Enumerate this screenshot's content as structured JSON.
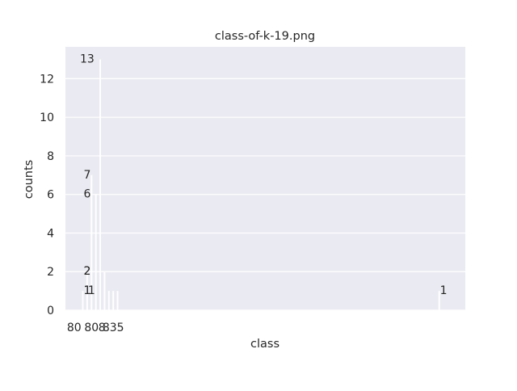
{
  "chart_data": {
    "type": "bar",
    "title": "class-of-k-19.png",
    "xlabel": "class",
    "ylabel": "counts",
    "ylim": [
      0,
      13.65
    ],
    "xlim": [
      803,
      849
    ],
    "grid": true,
    "bars": [
      {
        "x": 805,
        "value": 1
      },
      {
        "x": 805.5,
        "value": 2
      },
      {
        "x": 806,
        "value": 7
      },
      {
        "x": 806.5,
        "value": 6
      },
      {
        "x": 807,
        "value": 13
      },
      {
        "x": 807.5,
        "value": 2
      },
      {
        "x": 808,
        "value": 1
      },
      {
        "x": 808.5,
        "value": 1
      },
      {
        "x": 809,
        "value": 1
      },
      {
        "x": 846,
        "value": 1
      }
    ],
    "data_labels": [
      {
        "x": 805.5,
        "value": 13,
        "text": "13"
      },
      {
        "x": 805.5,
        "value": 7,
        "text": "7"
      },
      {
        "x": 805.5,
        "value": 6,
        "text": "6"
      },
      {
        "x": 805.5,
        "value": 2,
        "text": "2"
      },
      {
        "x": 805.5,
        "value": 2,
        "text": "2"
      },
      {
        "x": 805.5,
        "value": 1,
        "text": "1"
      },
      {
        "x": 805.5,
        "value": 1,
        "text": "1"
      },
      {
        "x": 806.0,
        "value": 1,
        "text": "1"
      },
      {
        "x": 846.5,
        "value": 1,
        "text": "1"
      }
    ],
    "y_ticks": [
      0,
      2,
      4,
      6,
      8,
      10,
      12
    ],
    "x_tick_labels": [
      {
        "x": 804.0,
        "text": "80"
      },
      {
        "x": 806.0,
        "text": "80"
      },
      {
        "x": 807.2,
        "text": "8"
      },
      {
        "x": 808.5,
        "text": "835"
      }
    ]
  }
}
